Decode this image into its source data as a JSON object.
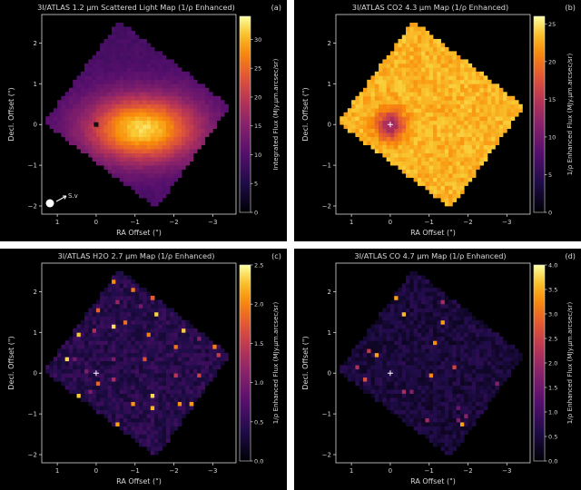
{
  "chart_data": [
    {
      "type": "heatmap",
      "panel_label": "(a)",
      "title": "3I/ATLAS 1.2 μm Scattered Light Map (1/ρ Enhanced)",
      "xlabel": "RA Offset (\")",
      "ylabel": "Decl. Offset (\")",
      "colorbar_label": "Integrated Flux (MJy.μm.arcsec/sr)",
      "xlim": [
        1.4,
        -3.6
      ],
      "ylim": [
        -2.2,
        2.7
      ],
      "x_ticks": [
        1,
        0,
        -1,
        -2,
        -3
      ],
      "y_ticks": [
        2,
        1,
        0,
        -1,
        -2
      ],
      "colorbar_range": [
        0,
        34
      ],
      "colorbar_ticks": [
        0,
        5,
        10,
        15,
        20,
        25,
        30
      ],
      "colormap": "inferno",
      "marker": {
        "kind": "square",
        "x": 0,
        "y": 0,
        "color": "#111111"
      },
      "field_corners": [
        [
          1.35,
          0.05
        ],
        [
          -0.6,
          2.55
        ],
        [
          -3.45,
          0.45
        ],
        [
          -1.55,
          -2.05
        ]
      ],
      "map_model": "peak near (-1.2, -0.1) ~30, falling to ~10 at edges",
      "inset": {
        "label": "S.v",
        "sun_symbol": "filled-circle"
      }
    },
    {
      "type": "heatmap",
      "panel_label": "(b)",
      "title": "3I/ATLAS CO2 4.3 μm Map (1/ρ Enhanced)",
      "xlabel": "RA Offset (\")",
      "ylabel": "Decl. Offset (\")",
      "colorbar_label": "1/ρ Enhanced Flux (MJy.μm.arcsec/sr)",
      "xlim": [
        1.4,
        -3.6
      ],
      "ylim": [
        -2.2,
        2.7
      ],
      "x_ticks": [
        1,
        0,
        -1,
        -2,
        -3
      ],
      "y_ticks": [
        2,
        1,
        0,
        -1,
        -2
      ],
      "colorbar_range": [
        0,
        26
      ],
      "colorbar_ticks": [
        0,
        5,
        10,
        15,
        20,
        25
      ],
      "colormap": "inferno",
      "marker": {
        "kind": "cross",
        "x": 0,
        "y": 0,
        "color": "#ffffff"
      },
      "field_corners": [
        [
          1.35,
          0.05
        ],
        [
          -0.6,
          2.55
        ],
        [
          -3.45,
          0.45
        ],
        [
          -1.55,
          -2.05
        ]
      ],
      "map_model": "nearly uniform ~22-24 with dip to ~13 around nucleus"
    },
    {
      "type": "heatmap",
      "panel_label": "(c)",
      "title": "3I/ATLAS H2O 2.7 μm Map (1/ρ Enhanced)",
      "xlabel": "RA Offset (\")",
      "ylabel": "Decl. Offset (\")",
      "colorbar_label": "1/ρ Enhanced Flux (MJy.μm.arcsec/sr)",
      "xlim": [
        1.4,
        -3.6
      ],
      "ylim": [
        -2.2,
        2.7
      ],
      "x_ticks": [
        1,
        0,
        -1,
        -2,
        -3
      ],
      "y_ticks": [
        2,
        1,
        0,
        -1,
        -2
      ],
      "colorbar_range": [
        0,
        2.5
      ],
      "colorbar_ticks": [
        "0.0",
        "0.5",
        "1.0",
        "1.5",
        "2.0",
        "2.5"
      ],
      "colormap": "inferno",
      "marker": {
        "kind": "cross",
        "x": 0,
        "y": 0,
        "color": "#ffffff"
      },
      "field_corners": [
        [
          1.35,
          0.05
        ],
        [
          -0.6,
          2.55
        ],
        [
          -3.45,
          0.45
        ],
        [
          -1.55,
          -2.05
        ]
      ],
      "map_model": "noisy low ~0.2-0.5 with scattered hot pixels along edges"
    },
    {
      "type": "heatmap",
      "panel_label": "(d)",
      "title": "3I/ATLAS CO 4.7 μm Map (1/ρ Enhanced)",
      "xlabel": "RA Offset (\")",
      "ylabel": "Decl. Offset (\")",
      "colorbar_label": "1/ρ Enhanced Flux (MJy.μm.arcsec/sr)",
      "xlim": [
        1.4,
        -3.6
      ],
      "ylim": [
        -2.2,
        2.7
      ],
      "x_ticks": [
        1,
        0,
        -1,
        -2,
        -3
      ],
      "y_ticks": [
        2,
        1,
        0,
        -1,
        -2
      ],
      "colorbar_range": [
        0,
        4.0
      ],
      "colorbar_ticks": [
        "0.0",
        "0.5",
        "1.0",
        "1.5",
        "2.0",
        "2.5",
        "3.0",
        "3.5",
        "4.0"
      ],
      "colormap": "inferno",
      "marker": {
        "kind": "cross",
        "x": 0,
        "y": 0,
        "color": "#ffffff"
      },
      "field_corners": [
        [
          1.35,
          0.05
        ],
        [
          -0.6,
          2.55
        ],
        [
          -3.45,
          0.45
        ],
        [
          -1.55,
          -2.05
        ]
      ],
      "map_model": "noisy low ~0.2-0.6 with scattered hot pixels along edges"
    }
  ]
}
